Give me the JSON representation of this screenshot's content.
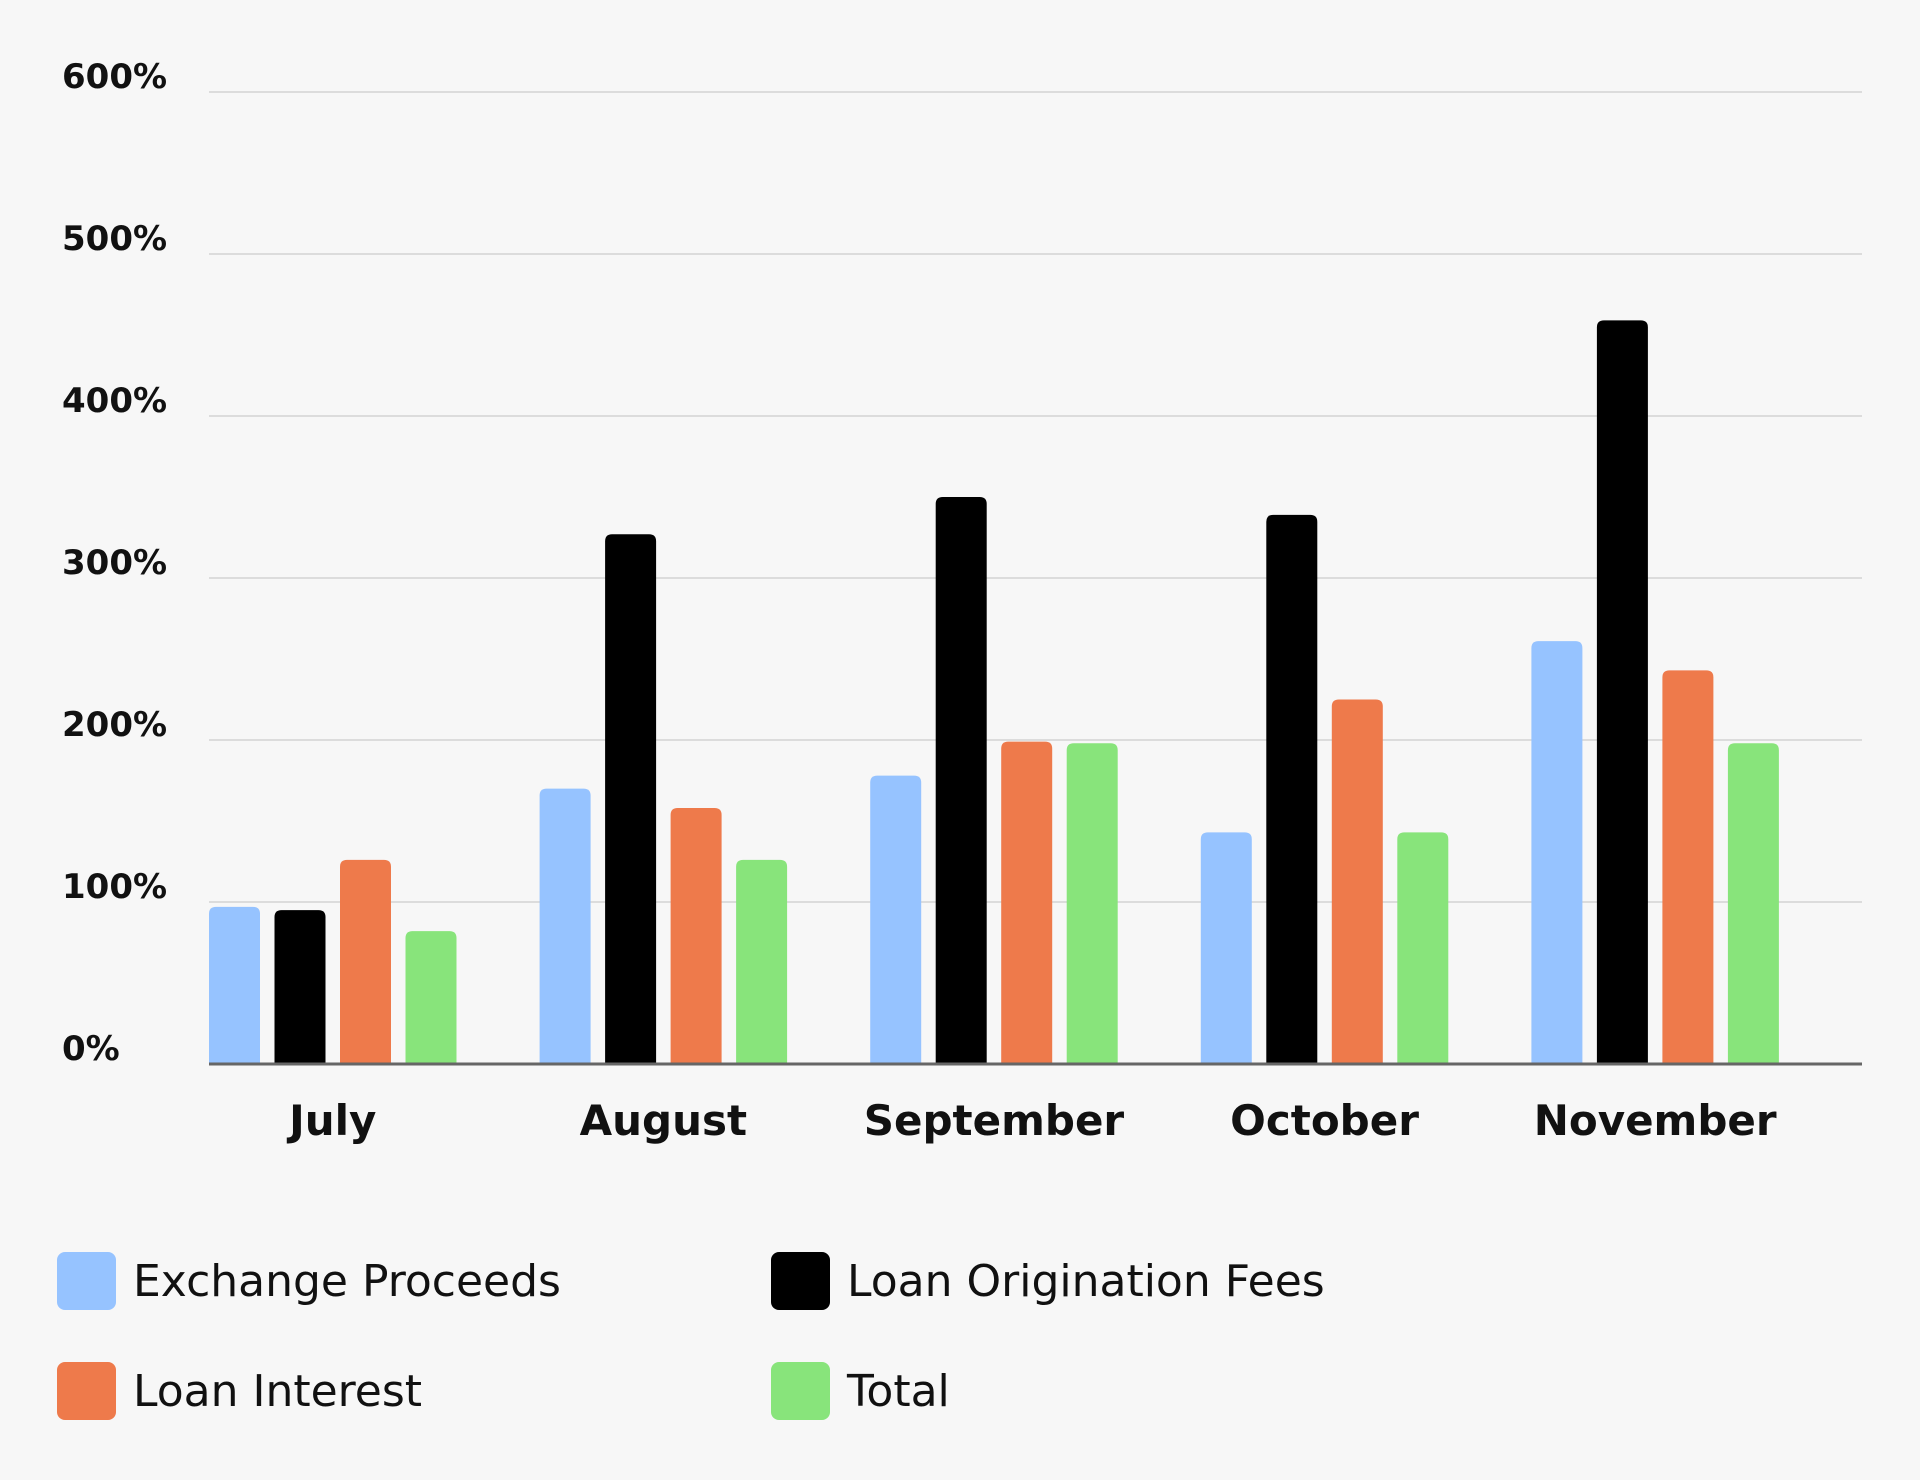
{
  "chart_data": {
    "type": "bar",
    "categories": [
      "July",
      "August",
      "September",
      "October",
      "November"
    ],
    "series": [
      {
        "name": "Exchange Proceeds",
        "color": "#96c3ff",
        "values": [
          97,
          170,
          178,
          143,
          261
        ]
      },
      {
        "name": "Loan Origination Fees",
        "color": "#000000",
        "values": [
          95,
          327,
          350,
          339,
          459
        ]
      },
      {
        "name": "Loan Interest",
        "color": "#ee7a4b",
        "values": [
          126,
          158,
          199,
          225,
          243
        ]
      },
      {
        "name": "Total",
        "color": "#88e47b",
        "values": [
          82,
          126,
          198,
          143,
          198
        ]
      }
    ],
    "y_ticks": [
      "0%",
      "100%",
      "200%",
      "300%",
      "400%",
      "500%",
      "600%"
    ],
    "ylim": [
      0,
      600
    ],
    "grid": true,
    "legend_position": "bottom"
  }
}
